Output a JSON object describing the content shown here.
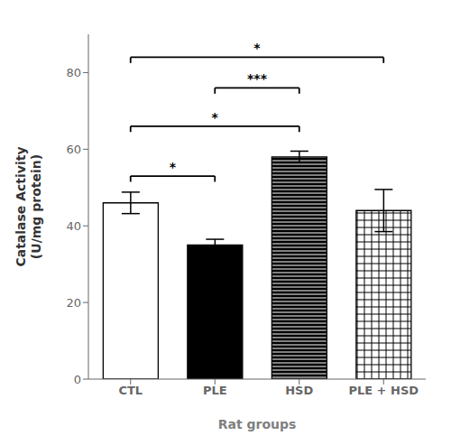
{
  "chart_data": {
    "type": "bar",
    "categories": [
      "CTL",
      "PLE",
      "HSD",
      "PLE + HSD"
    ],
    "values": [
      46.0,
      35.0,
      58.0,
      44.0
    ],
    "errors": [
      2.8,
      1.5,
      1.5,
      5.5
    ],
    "colors": [
      "white",
      "black",
      "black",
      "white"
    ],
    "xlabel": "Rat groups",
    "ylabel": "Catalase Activity\n(U/mg protein)",
    "ylim": [
      0,
      90
    ],
    "yticks": [
      0,
      20,
      40,
      60,
      80
    ],
    "grid": false,
    "annotations": [
      {
        "x1": "CTL",
        "x2": "PLE",
        "y": 53,
        "label": "*"
      },
      {
        "x1": "CTL",
        "x2": "HSD",
        "y": 66,
        "label": "*"
      },
      {
        "x1": "PLE",
        "x2": "HSD",
        "y": 76,
        "label": "***"
      },
      {
        "x1": "CTL",
        "x2": "PLE + HSD",
        "y": 84,
        "label": "*"
      }
    ]
  }
}
